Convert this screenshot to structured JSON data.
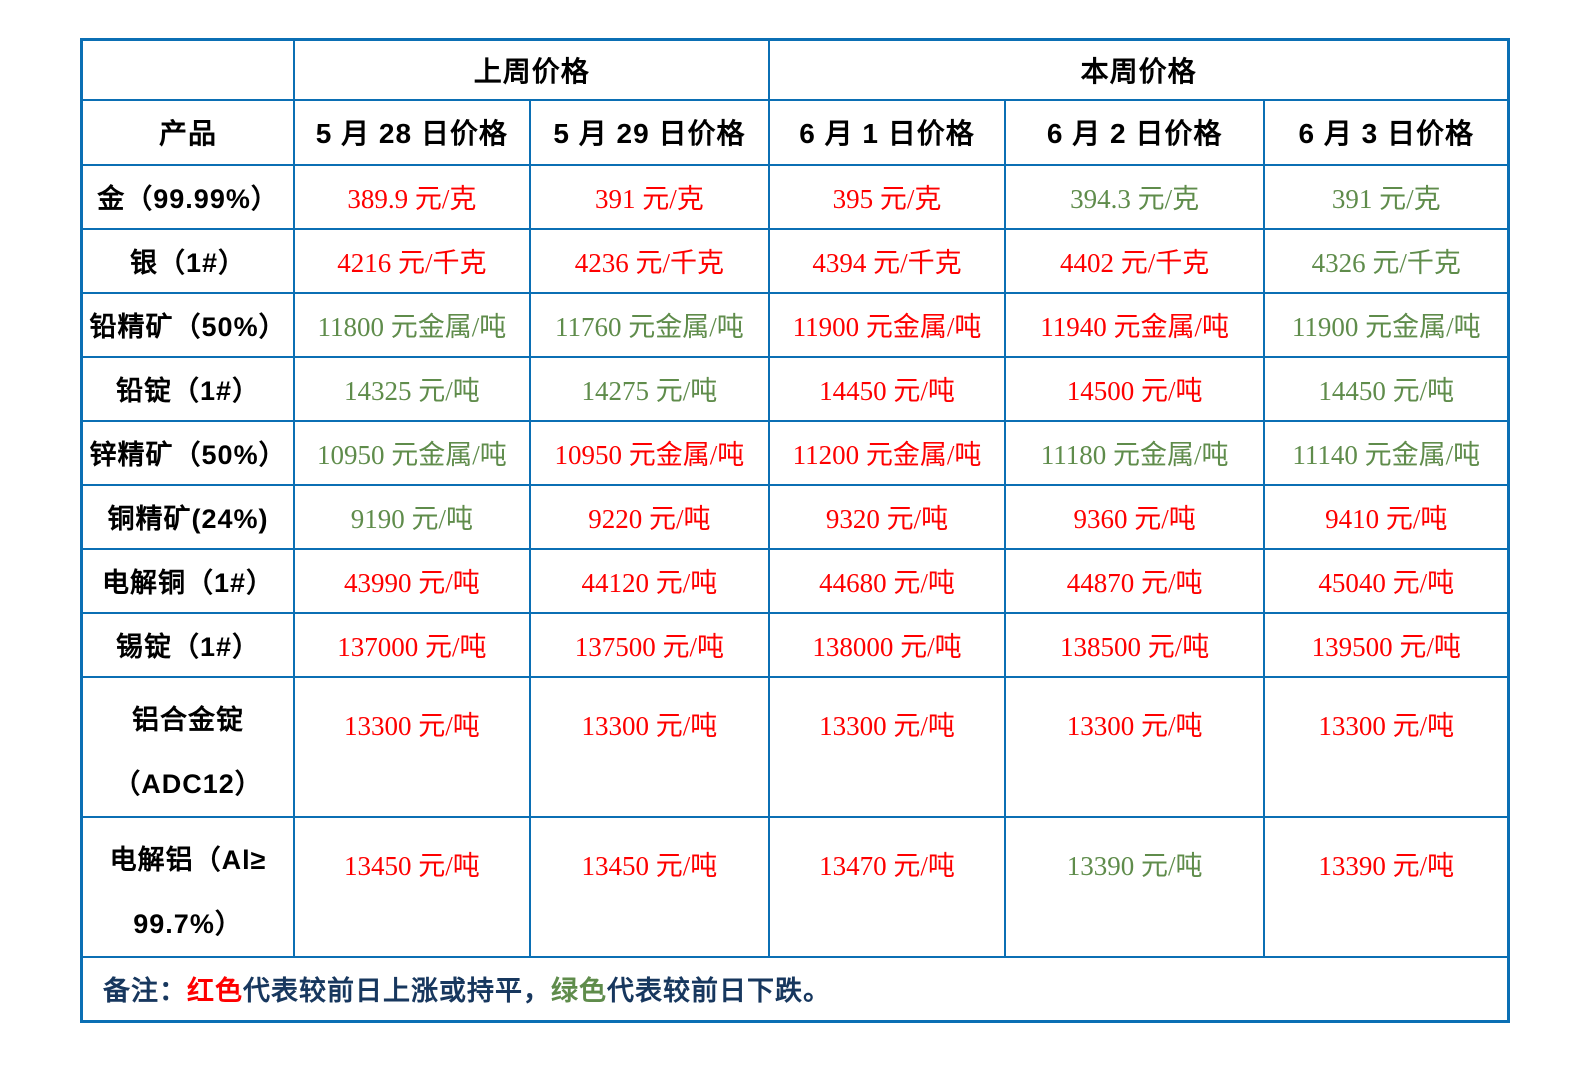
{
  "colors": {
    "rise_red": "#FE0000",
    "fall_green": "#5F8C4B",
    "grid_blue": "#0B6FB4",
    "note_navy": "#17375E"
  },
  "table": {
    "corner_label": "",
    "col_groups": [
      {
        "label": "上周价格",
        "span": 2
      },
      {
        "label": "本周价格",
        "span": 3
      }
    ],
    "product_header": "产品",
    "date_headers": [
      "5 月 28 日价格",
      "5 月 29 日价格",
      "6 月 1 日价格",
      "6 月 2 日价格",
      "6 月 3 日价格"
    ],
    "rows": [
      {
        "product": "金（99.99%）",
        "values": [
          {
            "text": "389.9 元/克",
            "color": "red"
          },
          {
            "text": "391 元/克",
            "color": "red"
          },
          {
            "text": "395 元/克",
            "color": "red"
          },
          {
            "text": "394.3 元/克",
            "color": "green"
          },
          {
            "text": "391 元/克",
            "color": "green"
          }
        ]
      },
      {
        "product": "银（1#）",
        "values": [
          {
            "text": "4216 元/千克",
            "color": "red"
          },
          {
            "text": "4236 元/千克",
            "color": "red"
          },
          {
            "text": "4394 元/千克",
            "color": "red"
          },
          {
            "text": "4402 元/千克",
            "color": "red"
          },
          {
            "text": "4326 元/千克",
            "color": "green"
          }
        ]
      },
      {
        "product": "铅精矿（50%）",
        "values": [
          {
            "text": "11800 元金属/吨",
            "color": "green"
          },
          {
            "text": "11760 元金属/吨",
            "color": "green"
          },
          {
            "text": "11900 元金属/吨",
            "color": "red"
          },
          {
            "text": "11940 元金属/吨",
            "color": "red"
          },
          {
            "text": "11900 元金属/吨",
            "color": "green"
          }
        ]
      },
      {
        "product": "铅锭（1#）",
        "values": [
          {
            "text": "14325 元/吨",
            "color": "green"
          },
          {
            "text": "14275 元/吨",
            "color": "green"
          },
          {
            "text": "14450 元/吨",
            "color": "red"
          },
          {
            "text": "14500 元/吨",
            "color": "red"
          },
          {
            "text": "14450 元/吨",
            "color": "green"
          }
        ]
      },
      {
        "product": "锌精矿（50%）",
        "values": [
          {
            "text": "10950 元金属/吨",
            "color": "green"
          },
          {
            "text": "10950 元金属/吨",
            "color": "red"
          },
          {
            "text": "11200 元金属/吨",
            "color": "red"
          },
          {
            "text": "11180 元金属/吨",
            "color": "green"
          },
          {
            "text": "11140 元金属/吨",
            "color": "green"
          }
        ]
      },
      {
        "product": "铜精矿(24%)",
        "values": [
          {
            "text": "9190 元/吨",
            "color": "green"
          },
          {
            "text": "9220 元/吨",
            "color": "red"
          },
          {
            "text": "9320 元/吨",
            "color": "red"
          },
          {
            "text": "9360 元/吨",
            "color": "red"
          },
          {
            "text": "9410 元/吨",
            "color": "red"
          }
        ]
      },
      {
        "product": "电解铜（1#）",
        "values": [
          {
            "text": "43990 元/吨",
            "color": "red"
          },
          {
            "text": "44120 元/吨",
            "color": "red"
          },
          {
            "text": "44680 元/吨",
            "color": "red"
          },
          {
            "text": "44870 元/吨",
            "color": "red"
          },
          {
            "text": "45040 元/吨",
            "color": "red"
          }
        ]
      },
      {
        "product": "锡锭（1#）",
        "values": [
          {
            "text": "137000 元/吨",
            "color": "red"
          },
          {
            "text": "137500 元/吨",
            "color": "red"
          },
          {
            "text": "138000 元/吨",
            "color": "red"
          },
          {
            "text": "138500 元/吨",
            "color": "red"
          },
          {
            "text": "139500 元/吨",
            "color": "red"
          }
        ]
      },
      {
        "product": "铝合金锭\n（ADC12）",
        "values": [
          {
            "text": "13300 元/吨",
            "color": "red"
          },
          {
            "text": "13300 元/吨",
            "color": "red"
          },
          {
            "text": "13300 元/吨",
            "color": "red"
          },
          {
            "text": "13300 元/吨",
            "color": "red"
          },
          {
            "text": "13300 元/吨",
            "color": "red"
          }
        ]
      },
      {
        "product": "电解铝（Al≥\n99.7%）",
        "values": [
          {
            "text": "13450 元/吨",
            "color": "red"
          },
          {
            "text": "13450 元/吨",
            "color": "red"
          },
          {
            "text": "13470 元/吨",
            "color": "red"
          },
          {
            "text": "13390 元/吨",
            "color": "green"
          },
          {
            "text": "13390 元/吨",
            "color": "red"
          }
        ]
      }
    ],
    "note": {
      "prefix": "备注：",
      "red_text": "红色",
      "mid_text": "代表较前日上涨或持平，",
      "green_text": "绿色",
      "suffix": "代表较前日下跌。"
    }
  }
}
